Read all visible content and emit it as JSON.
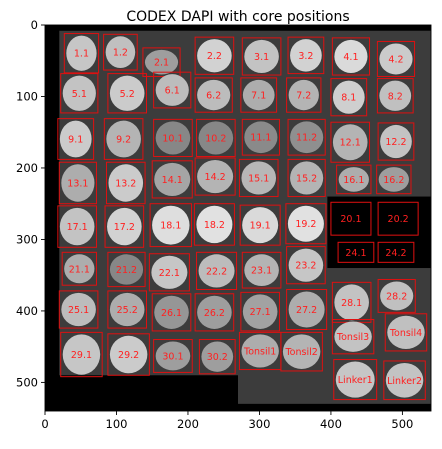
{
  "title": "CODEX DAPI with core positions",
  "chart_data": {
    "type": "heatmap",
    "title": "CODEX DAPI with core positions",
    "xlabel": "",
    "ylabel": "",
    "xlim": [
      0,
      540
    ],
    "ylim": [
      540,
      0
    ],
    "xticks": [
      0,
      100,
      200,
      300,
      400,
      500
    ],
    "yticks": [
      0,
      100,
      200,
      300,
      400,
      500
    ],
    "grid": false,
    "box_color": "#e01010",
    "label_color": "#ff2020",
    "background": "#000000",
    "cores": [
      {
        "label": "1.1",
        "x": 27,
        "y": 12,
        "w": 48,
        "h": 55,
        "s": 0.72
      },
      {
        "label": "1.2",
        "x": 82,
        "y": 13,
        "w": 47,
        "h": 50,
        "s": 0.68
      },
      {
        "label": "2.1",
        "x": 137,
        "y": 32,
        "w": 52,
        "h": 40,
        "s": 0.45
      },
      {
        "label": "2.2",
        "x": 210,
        "y": 17,
        "w": 54,
        "h": 52,
        "s": 0.8
      },
      {
        "label": "3.1",
        "x": 276,
        "y": 18,
        "w": 54,
        "h": 52,
        "s": 0.7
      },
      {
        "label": "3.2",
        "x": 340,
        "y": 17,
        "w": 50,
        "h": 51,
        "s": 0.8
      },
      {
        "label": "4.1",
        "x": 402,
        "y": 18,
        "w": 52,
        "h": 52,
        "s": 0.85
      },
      {
        "label": "4.2",
        "x": 465,
        "y": 23,
        "w": 52,
        "h": 49,
        "s": 0.75
      },
      {
        "label": "5.1",
        "x": 22,
        "y": 68,
        "w": 52,
        "h": 55,
        "s": 0.7
      },
      {
        "label": "5.2",
        "x": 88,
        "y": 68,
        "w": 54,
        "h": 55,
        "s": 0.75
      },
      {
        "label": "6.1",
        "x": 152,
        "y": 66,
        "w": 52,
        "h": 50,
        "s": 0.65
      },
      {
        "label": "6.2",
        "x": 210,
        "y": 74,
        "w": 52,
        "h": 48,
        "s": 0.65
      },
      {
        "label": "7.1",
        "x": 274,
        "y": 74,
        "w": 50,
        "h": 48,
        "s": 0.55
      },
      {
        "label": "7.2",
        "x": 338,
        "y": 74,
        "w": 48,
        "h": 48,
        "s": 0.6
      },
      {
        "label": "8.1",
        "x": 400,
        "y": 75,
        "w": 50,
        "h": 52,
        "s": 0.78
      },
      {
        "label": "8.2",
        "x": 465,
        "y": 75,
        "w": 50,
        "h": 48,
        "s": 0.68
      },
      {
        "label": "9.1",
        "x": 18,
        "y": 131,
        "w": 50,
        "h": 57,
        "s": 0.75
      },
      {
        "label": "9.2",
        "x": 83,
        "y": 131,
        "w": 54,
        "h": 57,
        "s": 0.6
      },
      {
        "label": "10.1",
        "x": 152,
        "y": 132,
        "w": 54,
        "h": 52,
        "s": 0.3
      },
      {
        "label": "10.2",
        "x": 212,
        "y": 132,
        "w": 54,
        "h": 52,
        "s": 0.3
      },
      {
        "label": "11.1",
        "x": 276,
        "y": 132,
        "w": 52,
        "h": 50,
        "s": 0.32
      },
      {
        "label": "11.2",
        "x": 340,
        "y": 132,
        "w": 52,
        "h": 50,
        "s": 0.35
      },
      {
        "label": "12.1",
        "x": 400,
        "y": 136,
        "w": 54,
        "h": 56,
        "s": 0.6
      },
      {
        "label": "12.2",
        "x": 466,
        "y": 137,
        "w": 50,
        "h": 52,
        "s": 0.7
      },
      {
        "label": "13.1",
        "x": 20,
        "y": 192,
        "w": 52,
        "h": 58,
        "s": 0.55
      },
      {
        "label": "13.2",
        "x": 86,
        "y": 192,
        "w": 54,
        "h": 58,
        "s": 0.75
      },
      {
        "label": "14.1",
        "x": 150,
        "y": 190,
        "w": 56,
        "h": 52,
        "s": 0.5
      },
      {
        "label": "14.2",
        "x": 210,
        "y": 186,
        "w": 56,
        "h": 52,
        "s": 0.6
      },
      {
        "label": "15.1",
        "x": 272,
        "y": 188,
        "w": 54,
        "h": 52,
        "s": 0.62
      },
      {
        "label": "15.2",
        "x": 340,
        "y": 188,
        "w": 52,
        "h": 52,
        "s": 0.6
      },
      {
        "label": "16.1",
        "x": 408,
        "y": 196,
        "w": 48,
        "h": 40,
        "s": 0.55
      },
      {
        "label": "16.2",
        "x": 464,
        "y": 196,
        "w": 48,
        "h": 40,
        "s": 0.45
      },
      {
        "label": "17.1",
        "x": 18,
        "y": 253,
        "w": 54,
        "h": 58,
        "s": 0.7
      },
      {
        "label": "17.2",
        "x": 84,
        "y": 253,
        "w": 54,
        "h": 58,
        "s": 0.8
      },
      {
        "label": "18.1",
        "x": 147,
        "y": 250,
        "w": 58,
        "h": 60,
        "s": 0.88
      },
      {
        "label": "18.2",
        "x": 209,
        "y": 250,
        "w": 56,
        "h": 58,
        "s": 0.9
      },
      {
        "label": "19.1",
        "x": 273,
        "y": 252,
        "w": 56,
        "h": 56,
        "s": 0.85
      },
      {
        "label": "19.2",
        "x": 337,
        "y": 250,
        "w": 56,
        "h": 56,
        "s": 0.9
      },
      {
        "label": "20.1",
        "x": 400,
        "y": 248,
        "w": 56,
        "h": 46,
        "s": 0.0
      },
      {
        "label": "20.2",
        "x": 466,
        "y": 248,
        "w": 56,
        "h": 46,
        "s": 0.0
      },
      {
        "label": "21.1",
        "x": 24,
        "y": 318,
        "w": 48,
        "h": 46,
        "s": 0.55
      },
      {
        "label": "21.2",
        "x": 88,
        "y": 318,
        "w": 52,
        "h": 48,
        "s": 0.3
      },
      {
        "label": "22.1",
        "x": 146,
        "y": 320,
        "w": 56,
        "h": 52,
        "s": 0.72
      },
      {
        "label": "22.2",
        "x": 212,
        "y": 318,
        "w": 56,
        "h": 52,
        "s": 0.65
      },
      {
        "label": "23.1",
        "x": 276,
        "y": 318,
        "w": 54,
        "h": 50,
        "s": 0.6
      },
      {
        "label": "23.2",
        "x": 338,
        "y": 310,
        "w": 54,
        "h": 52,
        "s": 0.72
      },
      {
        "label": "24.1",
        "x": 410,
        "y": 304,
        "w": 50,
        "h": 28,
        "s": 0.0
      },
      {
        "label": "24.2",
        "x": 466,
        "y": 304,
        "w": 50,
        "h": 28,
        "s": 0.0
      },
      {
        "label": "25.1",
        "x": 20,
        "y": 372,
        "w": 54,
        "h": 52,
        "s": 0.65
      },
      {
        "label": "25.2",
        "x": 88,
        "y": 372,
        "w": 54,
        "h": 52,
        "s": 0.55
      },
      {
        "label": "26.1",
        "x": 150,
        "y": 376,
        "w": 54,
        "h": 52,
        "s": 0.4
      },
      {
        "label": "26.2",
        "x": 210,
        "y": 376,
        "w": 54,
        "h": 52,
        "s": 0.45
      },
      {
        "label": "27.1",
        "x": 274,
        "y": 374,
        "w": 54,
        "h": 54,
        "s": 0.48
      },
      {
        "label": "27.2",
        "x": 338,
        "y": 370,
        "w": 56,
        "h": 56,
        "s": 0.55
      },
      {
        "label": "28.1",
        "x": 402,
        "y": 360,
        "w": 54,
        "h": 56,
        "s": 0.7
      },
      {
        "label": "28.2",
        "x": 466,
        "y": 356,
        "w": 52,
        "h": 46,
        "s": 0.68
      },
      {
        "label": "29.1",
        "x": 22,
        "y": 430,
        "w": 58,
        "h": 62,
        "s": 0.72
      },
      {
        "label": "29.2",
        "x": 88,
        "y": 432,
        "w": 58,
        "h": 58,
        "s": 0.75
      },
      {
        "label": "30.1",
        "x": 152,
        "y": 440,
        "w": 54,
        "h": 46,
        "s": 0.45
      },
      {
        "label": "30.2",
        "x": 216,
        "y": 440,
        "w": 50,
        "h": 48,
        "s": 0.45
      },
      {
        "label": "Tonsil1",
        "x": 272,
        "y": 430,
        "w": 58,
        "h": 52,
        "s": 0.55
      },
      {
        "label": "Tonsil2",
        "x": 330,
        "y": 430,
        "w": 58,
        "h": 54,
        "s": 0.6
      },
      {
        "label": "Tonsil3",
        "x": 402,
        "y": 412,
        "w": 58,
        "h": 48,
        "s": 0.7
      },
      {
        "label": "Tonsil4",
        "x": 476,
        "y": 404,
        "w": 58,
        "h": 52,
        "s": 0.68
      },
      {
        "label": "Linker1",
        "x": 404,
        "y": 468,
        "w": 60,
        "h": 56,
        "s": 0.72
      },
      {
        "label": "Linker2",
        "x": 474,
        "y": 470,
        "w": 58,
        "h": 54,
        "s": 0.7
      }
    ]
  }
}
